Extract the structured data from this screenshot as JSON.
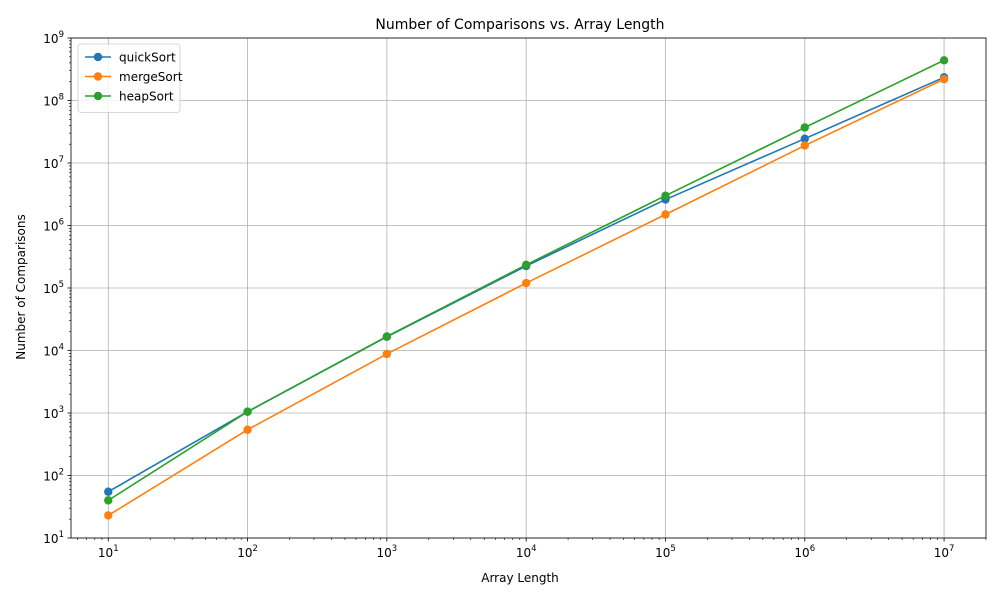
{
  "chart_data": {
    "type": "line",
    "title": "Number of Comparisons vs. Array Length",
    "xlabel": "Array Length",
    "ylabel": "Number of Comparisons",
    "xscale": "log",
    "yscale": "log",
    "xlim": [
      5.4,
      20000000
    ],
    "ylim": [
      10,
      1000000000
    ],
    "grid": true,
    "legend_position": "top-left",
    "x": [
      10,
      100,
      1000,
      10000,
      100000,
      1000000,
      10000000
    ],
    "x_ticks": [
      {
        "base": "10",
        "exp": "1",
        "value": 10
      },
      {
        "base": "10",
        "exp": "2",
        "value": 100
      },
      {
        "base": "10",
        "exp": "3",
        "value": 1000
      },
      {
        "base": "10",
        "exp": "4",
        "value": 10000
      },
      {
        "base": "10",
        "exp": "5",
        "value": 100000
      },
      {
        "base": "10",
        "exp": "6",
        "value": 1000000
      },
      {
        "base": "10",
        "exp": "7",
        "value": 10000000
      }
    ],
    "y_ticks": [
      {
        "base": "10",
        "exp": "1",
        "value": 10
      },
      {
        "base": "10",
        "exp": "2",
        "value": 100
      },
      {
        "base": "10",
        "exp": "3",
        "value": 1000
      },
      {
        "base": "10",
        "exp": "4",
        "value": 10000
      },
      {
        "base": "10",
        "exp": "5",
        "value": 100000
      },
      {
        "base": "10",
        "exp": "6",
        "value": 1000000
      },
      {
        "base": "10",
        "exp": "7",
        "value": 10000000
      },
      {
        "base": "10",
        "exp": "8",
        "value": 100000000
      },
      {
        "base": "10",
        "exp": "9",
        "value": 1000000000
      }
    ],
    "series": [
      {
        "name": "quickSort",
        "color": "#1f77b4",
        "values": [
          55,
          1050,
          16600,
          225000,
          2600000,
          24500000,
          235000000
        ]
      },
      {
        "name": "mergeSort",
        "color": "#ff7f0e",
        "values": [
          23,
          540,
          8800,
          120000,
          1500000,
          19000000,
          220000000
        ]
      },
      {
        "name": "heapSort",
        "color": "#2ca02c",
        "values": [
          40,
          1050,
          16800,
          235000,
          3000000,
          37000000,
          440000000
        ]
      }
    ]
  }
}
